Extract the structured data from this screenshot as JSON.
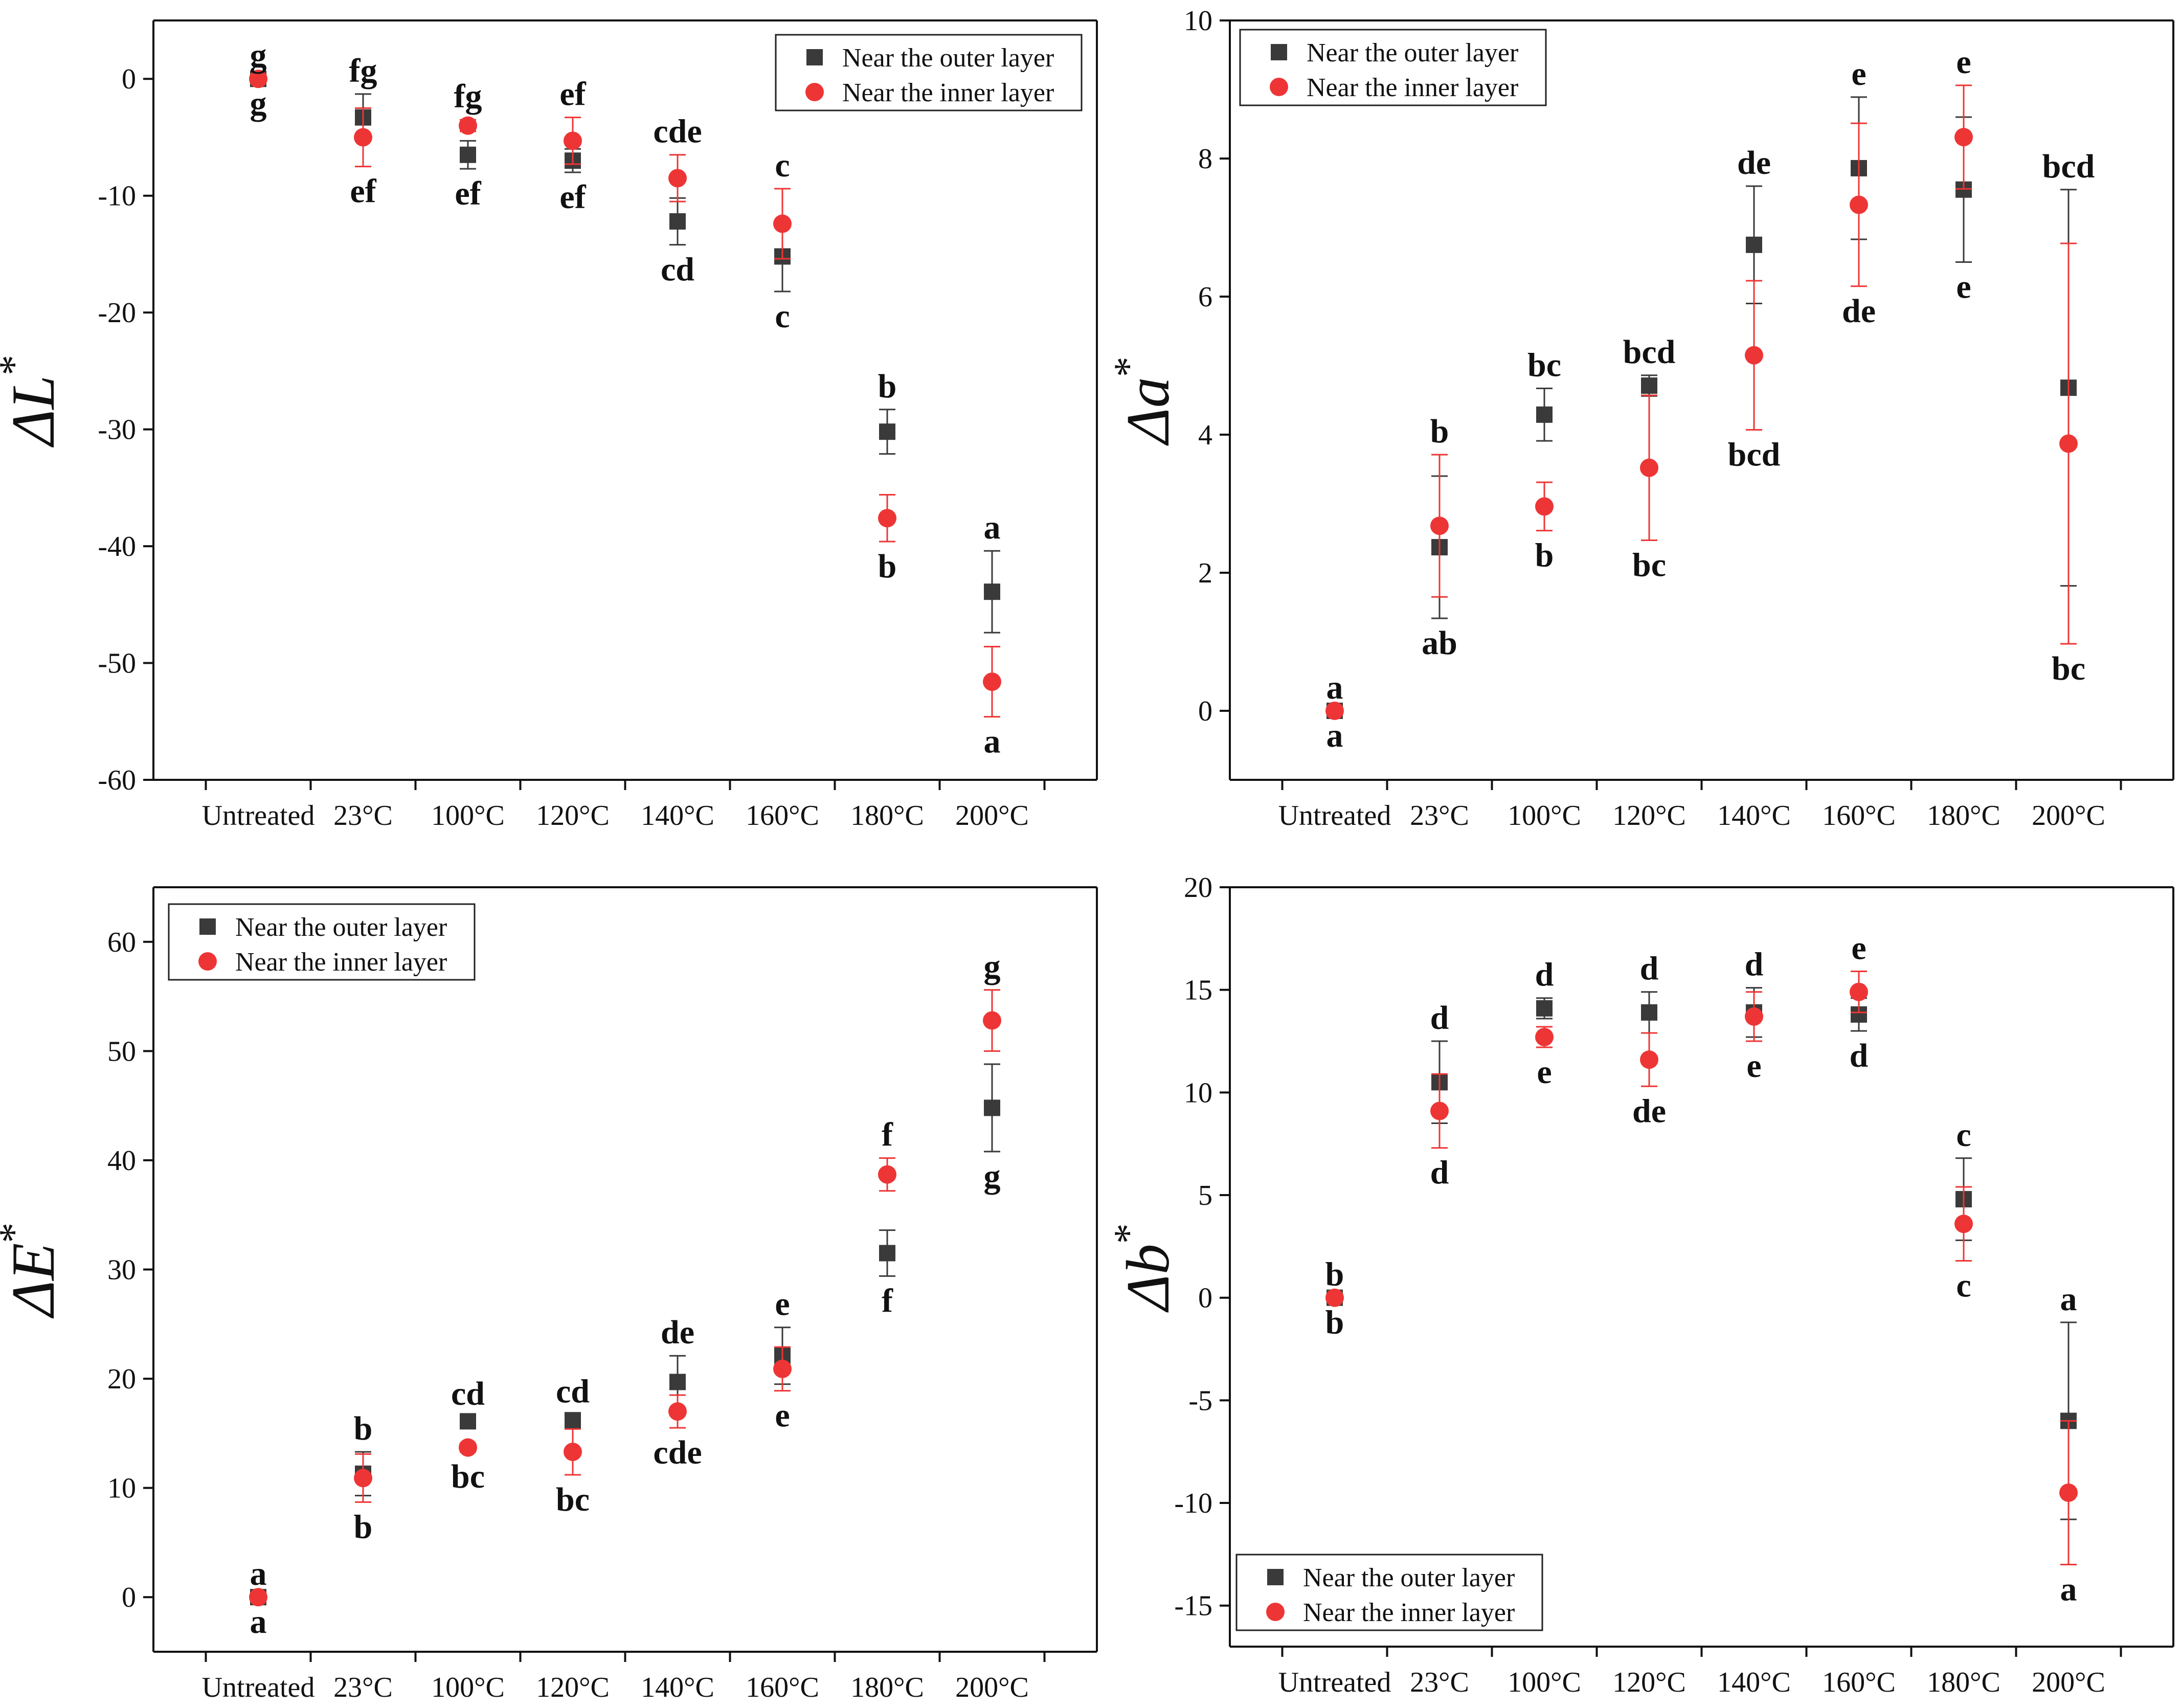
{
  "colors": {
    "outer": "#3a3a3a",
    "inner": "#ee3535",
    "axis": "#111111"
  },
  "legend": {
    "outer_label": "Near the outer layer",
    "inner_label": "Near the inner layer"
  },
  "chart_data": [
    {
      "type": "scatter",
      "ylabel_symbol": "ΔL",
      "ylabel_sup": "*",
      "categories": [
        "Untreated",
        "23°C",
        "100°C",
        "120°C",
        "140°C",
        "160°C",
        "180°C",
        "200°C"
      ],
      "ylim": [
        -60,
        5
      ],
      "yticks": [
        0,
        -10,
        -20,
        -30,
        -40,
        -50,
        -60
      ],
      "legend_position": "top-right",
      "series": [
        {
          "name": "Near the outer layer",
          "marker": "square",
          "values": [
            0,
            -3.3,
            -6.5,
            -7.0,
            -12.2,
            -15.2,
            -30.2,
            -43.9
          ],
          "errors": [
            0,
            2.0,
            1.2,
            1.0,
            2.0,
            3.0,
            1.9,
            3.5
          ],
          "letters": [
            "g",
            "fg",
            "ef",
            "ef",
            "cd",
            "c",
            "b",
            "a"
          ]
        },
        {
          "name": "Near the inner layer",
          "marker": "circle",
          "values": [
            0,
            -5.0,
            -4.0,
            -5.3,
            -8.5,
            -12.4,
            -37.6,
            -51.6
          ],
          "errors": [
            0,
            2.5,
            0.5,
            2.0,
            2.0,
            3.0,
            2.0,
            3.0
          ],
          "letters": [
            "g",
            "ef",
            "fg",
            "ef",
            "cde",
            "c",
            "b",
            "a"
          ]
        }
      ]
    },
    {
      "type": "scatter",
      "ylabel_symbol": "Δa",
      "ylabel_sup": "*",
      "categories": [
        "Untreated",
        "23°C",
        "100°C",
        "120°C",
        "140°C",
        "160°C",
        "180°C",
        "200°C"
      ],
      "ylim": [
        -1,
        10
      ],
      "yticks": [
        0,
        2,
        4,
        6,
        8,
        10
      ],
      "legend_position": "top-left",
      "series": [
        {
          "name": "Near the outer layer",
          "marker": "square",
          "values": [
            0,
            2.37,
            4.29,
            4.71,
            6.75,
            7.86,
            7.55,
            4.68
          ],
          "errors": [
            0,
            1.03,
            0.38,
            0.15,
            0.85,
            1.03,
            1.05,
            2.87
          ],
          "letters": [
            "a",
            "ab",
            "bc",
            "bcd",
            "de",
            "e",
            "e",
            "bcd"
          ]
        },
        {
          "name": "Near the inner layer",
          "marker": "circle",
          "values": [
            0,
            2.68,
            2.96,
            3.52,
            5.15,
            7.33,
            8.31,
            3.87
          ],
          "errors": [
            0,
            1.03,
            0.35,
            1.05,
            1.08,
            1.18,
            0.75,
            2.9
          ],
          "letters": [
            "a",
            "b",
            "b",
            "bc",
            "bcd",
            "de",
            "e",
            "bc"
          ]
        }
      ]
    },
    {
      "type": "scatter",
      "ylabel_symbol": "ΔE",
      "ylabel_sup": "*",
      "categories": [
        "Untreated",
        "23°C",
        "100°C",
        "120°C",
        "140°C",
        "160°C",
        "180°C",
        "200°C"
      ],
      "ylim": [
        -5,
        65
      ],
      "yticks": [
        0,
        10,
        20,
        30,
        40,
        50,
        60
      ],
      "legend_position": "top-left",
      "series": [
        {
          "name": "Near the outer layer",
          "marker": "square",
          "values": [
            0,
            11.3,
            16.1,
            16.2,
            19.7,
            22.1,
            31.5,
            44.8
          ],
          "errors": [
            0,
            2.0,
            0.4,
            0.5,
            2.4,
            2.6,
            2.1,
            4.0
          ],
          "letters": [
            "a",
            "b",
            "cd",
            "cd",
            "de",
            "e",
            "f",
            "g"
          ]
        },
        {
          "name": "Near the inner layer",
          "marker": "circle",
          "values": [
            0,
            10.9,
            13.7,
            13.3,
            17.0,
            20.9,
            38.7,
            52.8
          ],
          "errors": [
            0,
            2.2,
            0.4,
            2.1,
            1.5,
            2.0,
            1.5,
            2.8
          ],
          "letters": [
            "a",
            "b",
            "bc",
            "bc",
            "cde",
            "e",
            "f",
            "g"
          ]
        }
      ]
    },
    {
      "type": "scatter",
      "ylabel_symbol": "Δb",
      "ylabel_sup": "*",
      "categories": [
        "Untreated",
        "23°C",
        "100°C",
        "120°C",
        "140°C",
        "160°C",
        "180°C",
        "200°C"
      ],
      "ylim": [
        -17,
        20
      ],
      "yticks": [
        20,
        15,
        10,
        5,
        0,
        -5,
        -10,
        -15
      ],
      "legend_position": "bottom-left",
      "series": [
        {
          "name": "Near the outer layer",
          "marker": "square",
          "values": [
            0,
            10.5,
            14.1,
            13.9,
            13.9,
            13.8,
            4.8,
            -6.0
          ],
          "errors": [
            0,
            2.0,
            0.5,
            1.0,
            1.2,
            0.8,
            2.0,
            4.8
          ],
          "letters": [
            "b",
            "d",
            "d",
            "d",
            "d",
            "d",
            "c",
            "a"
          ]
        },
        {
          "name": "Near the inner layer",
          "marker": "circle",
          "values": [
            0,
            9.1,
            12.7,
            11.6,
            13.7,
            14.9,
            3.6,
            -9.5
          ],
          "errors": [
            0,
            1.8,
            0.5,
            1.3,
            1.2,
            1.0,
            1.8,
            3.5
          ],
          "letters": [
            "b",
            "d",
            "e",
            "de",
            "e",
            "e",
            "c",
            "a"
          ]
        }
      ]
    }
  ]
}
